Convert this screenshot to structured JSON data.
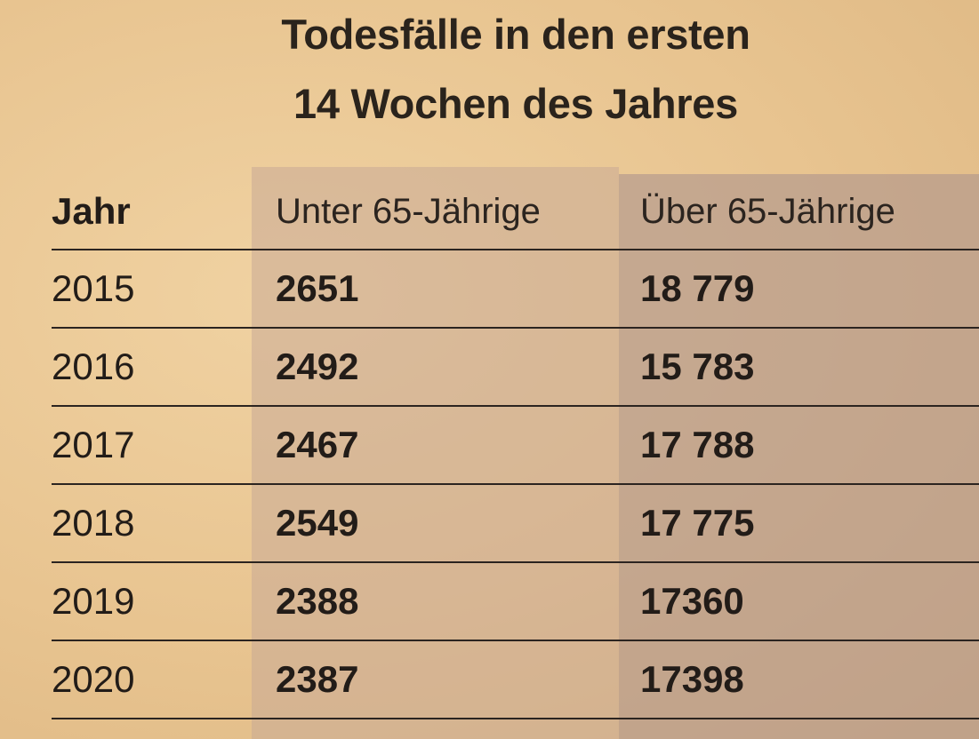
{
  "title": {
    "line1": "Todesfälle in den ersten",
    "line2": "14 Wochen des Jahres"
  },
  "chart_data": {
    "type": "table",
    "title": "Todesfälle in den ersten 14 Wochen des Jahres",
    "columns": [
      "Jahr",
      "Unter 65-Jährige",
      "Über 65-Jährige"
    ],
    "rows": [
      {
        "year": "2015",
        "under65": "2651",
        "over65": "18 779"
      },
      {
        "year": "2016",
        "under65": "2492",
        "over65": "15 783"
      },
      {
        "year": "2017",
        "under65": "2467",
        "over65": "17 788"
      },
      {
        "year": "2018",
        "under65": "2549",
        "over65": "17 775"
      },
      {
        "year": "2019",
        "under65": "2388",
        "over65": "17360"
      },
      {
        "year": "2020",
        "under65": "2387",
        "over65": "17398"
      }
    ]
  }
}
